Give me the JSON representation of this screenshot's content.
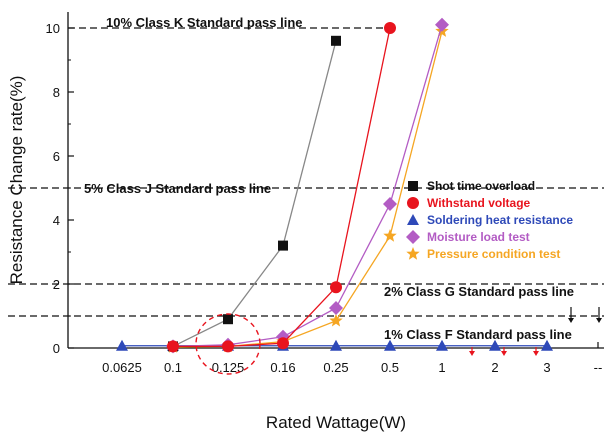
{
  "chart_data": {
    "type": "line",
    "xlabel": "Rated Wattage(W)",
    "ylabel": "Resistance Change rate(%)",
    "categories": [
      "0.0625",
      "0.1",
      "0.125",
      "0.16",
      "0.25",
      "0.5",
      "1",
      "2",
      "3",
      "--"
    ],
    "yticks": [
      "0",
      "2",
      "4",
      "6",
      "8",
      "10"
    ],
    "ylim": [
      0,
      10.5
    ],
    "grid": false,
    "legend_position": "center-right",
    "pass_lines": [
      {
        "label": "10% Class  K Standard pass line",
        "value": 10
      },
      {
        "label": "5% Class  J Standard pass line",
        "value": 5
      },
      {
        "label": "2% Class  G  Standard pass line",
        "value": 2
      },
      {
        "label": "1% Class  F Standard pass line",
        "value": 1
      }
    ],
    "series": [
      {
        "name": "Shot time overload",
        "color": "#111111",
        "line_color": "#888888",
        "marker": "square",
        "points": [
          [
            "0.1",
            0.05
          ],
          [
            "0.125",
            0.9
          ],
          [
            "0.16",
            3.2
          ],
          [
            "0.25",
            9.6
          ]
        ]
      },
      {
        "name": "Withstand voltage",
        "color": "#e8141e",
        "line_color": "#e8141e",
        "marker": "circle",
        "points": [
          [
            "0.1",
            0.05
          ],
          [
            "0.125",
            0.05
          ],
          [
            "0.16",
            0.15
          ],
          [
            "0.25",
            1.9
          ],
          [
            "0.5",
            10.0
          ]
        ]
      },
      {
        "name": "Soldering heat resistance",
        "color": "#2e49b8",
        "line_color": "#2e49b8",
        "marker": "triangle",
        "points": [
          [
            "0.0625",
            0.07
          ],
          [
            "0.1",
            0.07
          ],
          [
            "0.125",
            0.07
          ],
          [
            "0.16",
            0.07
          ],
          [
            "0.25",
            0.07
          ],
          [
            "0.5",
            0.07
          ],
          [
            "1",
            0.07
          ],
          [
            "2",
            0.07
          ],
          [
            "3",
            0.07
          ]
        ]
      },
      {
        "name": "Moisture load test",
        "color": "#b35cc4",
        "line_color": "#b35cc4",
        "marker": "diamond",
        "points": [
          [
            "0.1",
            0.05
          ],
          [
            "0.125",
            0.1
          ],
          [
            "0.16",
            0.35
          ],
          [
            "0.25",
            1.25
          ],
          [
            "0.5",
            4.5
          ],
          [
            "1",
            10.1
          ]
        ]
      },
      {
        "name": "Pressure condition test",
        "color": "#f5a623",
        "line_color": "#f5a623",
        "marker": "star",
        "points": [
          [
            "0.1",
            0.03
          ],
          [
            "0.125",
            0.05
          ],
          [
            "0.16",
            0.2
          ],
          [
            "0.25",
            0.85
          ],
          [
            "0.5",
            3.5
          ],
          [
            "1",
            9.9
          ]
        ]
      }
    ]
  }
}
